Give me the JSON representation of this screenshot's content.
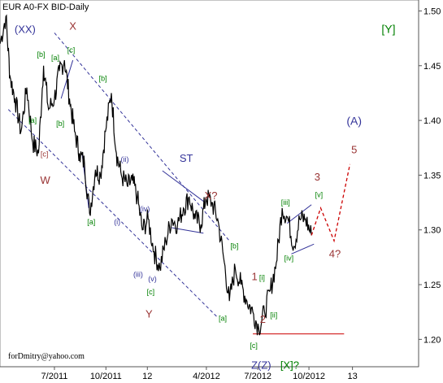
{
  "chart_data": {
    "type": "line",
    "title": "EUR A0-FX BID-Daily",
    "footer": "forDmitry@yahoo.com",
    "xlabel": "",
    "ylabel": "",
    "ylim": [
      1.175,
      1.51
    ],
    "xlim": [
      0,
      100
    ],
    "x_tick_labels": [
      {
        "x": 13.0,
        "label": "7/2011"
      },
      {
        "x": 25.3,
        "label": "10/2011"
      },
      {
        "x": 35.2,
        "label": "12"
      },
      {
        "x": 49.3,
        "label": "4/2012"
      },
      {
        "x": 61.6,
        "label": "7/2012"
      },
      {
        "x": 73.8,
        "label": "10/2012"
      },
      {
        "x": 84.2,
        "label": "13"
      }
    ],
    "y_ticks": [
      1.2,
      1.25,
      1.3,
      1.35,
      1.4,
      1.45,
      1.5
    ],
    "y_tick_labels": [
      "1.20",
      "1.25",
      "1.30",
      "1.35",
      "1.40",
      "1.45",
      "1.50"
    ],
    "series": [
      {
        "color": "#000000",
        "x": [
          0,
          1.4,
          2.4,
          3.6,
          5.0,
          6.4,
          7.8,
          9.2,
          10.4,
          11.6,
          13.0,
          14.2,
          15.4,
          16.6,
          17.8,
          19.0,
          20.2,
          21.4,
          22.8,
          24.0,
          25.2,
          26.6,
          27.8,
          29.0,
          30.4,
          31.6,
          32.8,
          34.0,
          35.4,
          36.8,
          38.2,
          39.6,
          41.0,
          42.4,
          43.8,
          45.2,
          46.6,
          48.0,
          49.2,
          50.6,
          52.0,
          53.4,
          54.8,
          56.2,
          57.6,
          59.0,
          60.4,
          61.8,
          63.2,
          64.6,
          66.0,
          67.4,
          68.8,
          70.2,
          71.6,
          73.0,
          74.4
        ],
        "values": [
          1.47,
          1.495,
          1.44,
          1.42,
          1.39,
          1.43,
          1.38,
          1.37,
          1.45,
          1.41,
          1.42,
          1.445,
          1.455,
          1.42,
          1.39,
          1.37,
          1.36,
          1.315,
          1.355,
          1.35,
          1.39,
          1.425,
          1.37,
          1.35,
          1.34,
          1.345,
          1.33,
          1.3,
          1.31,
          1.28,
          1.265,
          1.29,
          1.31,
          1.305,
          1.32,
          1.33,
          1.31,
          1.305,
          1.33,
          1.325,
          1.31,
          1.275,
          1.235,
          1.265,
          1.25,
          1.235,
          1.225,
          1.21,
          1.225,
          1.245,
          1.27,
          1.32,
          1.31,
          1.285,
          1.31,
          1.31,
          1.295
        ]
      }
    ],
    "projection": {
      "color": "#cc0000",
      "x": [
        74.4,
        76.6,
        79.8,
        83.6
      ],
      "values": [
        1.295,
        1.32,
        1.29,
        1.36
      ]
    },
    "annotations": [
      {
        "text": "(XX)",
        "x": 6.0,
        "y": 1.48,
        "color": "#333399",
        "size": 13
      },
      {
        "text": "X",
        "x": 17.4,
        "y": 1.483,
        "color": "#993333",
        "size": 13
      },
      {
        "text": "[c]",
        "x": 17.0,
        "y": 1.462,
        "color": "#008000",
        "size": 9
      },
      {
        "text": "[b]",
        "x": 9.8,
        "y": 1.458,
        "color": "#008000",
        "size": 9
      },
      {
        "text": "[a]",
        "x": 13.2,
        "y": 1.455,
        "color": "#008000",
        "size": 9
      },
      {
        "text": "[b]",
        "x": 24.6,
        "y": 1.436,
        "color": "#008000",
        "size": 9
      },
      {
        "text": "[a]",
        "x": 7.8,
        "y": 1.398,
        "color": "#008000",
        "size": 9
      },
      {
        "text": "[b]",
        "x": 14.4,
        "y": 1.395,
        "color": "#008000",
        "size": 9
      },
      {
        "text": "[c]",
        "x": 10.6,
        "y": 1.367,
        "color": "#993333",
        "size": 9
      },
      {
        "text": "W",
        "x": 10.8,
        "y": 1.342,
        "color": "#993333",
        "size": 13
      },
      {
        "text": "(ii)",
        "x": 29.8,
        "y": 1.362,
        "color": "#333399",
        "size": 9
      },
      {
        "text": "ST",
        "x": 44.5,
        "y": 1.362,
        "color": "#333399",
        "size": 13
      },
      {
        "text": "X?",
        "x": 50.4,
        "y": 1.328,
        "color": "#993333",
        "size": 13
      },
      {
        "text": "(iv)",
        "x": 34.6,
        "y": 1.317,
        "color": "#333399",
        "size": 9
      },
      {
        "text": "[a]",
        "x": 21.8,
        "y": 1.305,
        "color": "#008000",
        "size": 9
      },
      {
        "text": "(i)",
        "x": 28.0,
        "y": 1.305,
        "color": "#333399",
        "size": 9
      },
      {
        "text": "(iii)",
        "x": 33.0,
        "y": 1.257,
        "color": "#333399",
        "size": 9
      },
      {
        "text": "(v)",
        "x": 36.4,
        "y": 1.253,
        "color": "#333399",
        "size": 9
      },
      {
        "text": "[c]",
        "x": 36.0,
        "y": 1.241,
        "color": "#008000",
        "size": 9
      },
      {
        "text": "Y",
        "x": 35.6,
        "y": 1.22,
        "color": "#993333",
        "size": 13
      },
      {
        "text": "[b]",
        "x": 56.0,
        "y": 1.283,
        "color": "#008000",
        "size": 9
      },
      {
        "text": "[a]",
        "x": 53.2,
        "y": 1.217,
        "color": "#008000",
        "size": 9
      },
      {
        "text": "1",
        "x": 60.8,
        "y": 1.254,
        "color": "#993333",
        "size": 13
      },
      {
        "text": "[i]",
        "x": 62.6,
        "y": 1.254,
        "color": "#008000",
        "size": 9
      },
      {
        "text": "[ii]",
        "x": 65.4,
        "y": 1.22,
        "color": "#008000",
        "size": 9
      },
      {
        "text": "2",
        "x": 62.8,
        "y": 1.215,
        "color": "#993333",
        "size": 13
      },
      {
        "text": "[c]",
        "x": 60.6,
        "y": 1.192,
        "color": "#008000",
        "size": 9
      },
      {
        "text": "Z(Z)",
        "x": 62.4,
        "y": 1.173,
        "color": "#333399",
        "size": 13
      },
      {
        "text": "[X]?",
        "x": 69.2,
        "y": 1.173,
        "color": "#008000",
        "size": 13
      },
      {
        "text": "[iii]",
        "x": 68.2,
        "y": 1.323,
        "color": "#008000",
        "size": 9
      },
      {
        "text": "[iv]",
        "x": 69.0,
        "y": 1.272,
        "color": "#008000",
        "size": 9
      },
      {
        "text": "[v]",
        "x": 76.2,
        "y": 1.33,
        "color": "#008000",
        "size": 9
      },
      {
        "text": "3",
        "x": 75.8,
        "y": 1.345,
        "color": "#993333",
        "size": 13
      },
      {
        "text": "4?",
        "x": 80.0,
        "y": 1.275,
        "color": "#993333",
        "size": 13
      },
      {
        "text": "(A)",
        "x": 84.6,
        "y": 1.396,
        "color": "#333399",
        "size": 14
      },
      {
        "text": "5",
        "x": 84.6,
        "y": 1.37,
        "color": "#993333",
        "size": 13
      },
      {
        "text": "[Y]",
        "x": 92.8,
        "y": 1.48,
        "color": "#008000",
        "size": 14
      }
    ],
    "channel_lines": [
      {
        "color": "#333399",
        "dash": true,
        "x": [
          13.0,
          54.8
        ],
        "values": [
          1.48,
          1.29
        ]
      },
      {
        "color": "#333399",
        "dash": true,
        "x": [
          2.0,
          52.0
        ],
        "values": [
          1.41,
          1.22
        ]
      },
      {
        "color": "#333399",
        "dash": false,
        "x": [
          38.8,
          49.0
        ],
        "values": [
          1.354,
          1.325
        ]
      },
      {
        "color": "#333399",
        "dash": false,
        "x": [
          41.0,
          48.6
        ],
        "values": [
          1.302,
          1.297
        ]
      },
      {
        "color": "#333399",
        "dash": false,
        "x": [
          68.6,
          74.4
        ],
        "values": [
          1.306,
          1.323
        ]
      },
      {
        "color": "#333399",
        "dash": false,
        "x": [
          69.6,
          75.0
        ],
        "values": [
          1.278,
          1.287
        ]
      },
      {
        "color": "#333399",
        "dash": false,
        "x": [
          14.6,
          17.4
        ],
        "values": [
          1.42,
          1.455
        ]
      },
      {
        "color": "#333399",
        "dash": false,
        "x": [
          19.6,
          21.2
        ],
        "values": [
          1.37,
          1.32
        ]
      },
      {
        "color": "#cc0000",
        "dash": false,
        "x": [
          60.4,
          82.2
        ],
        "values": [
          1.205,
          1.205
        ]
      }
    ]
  }
}
